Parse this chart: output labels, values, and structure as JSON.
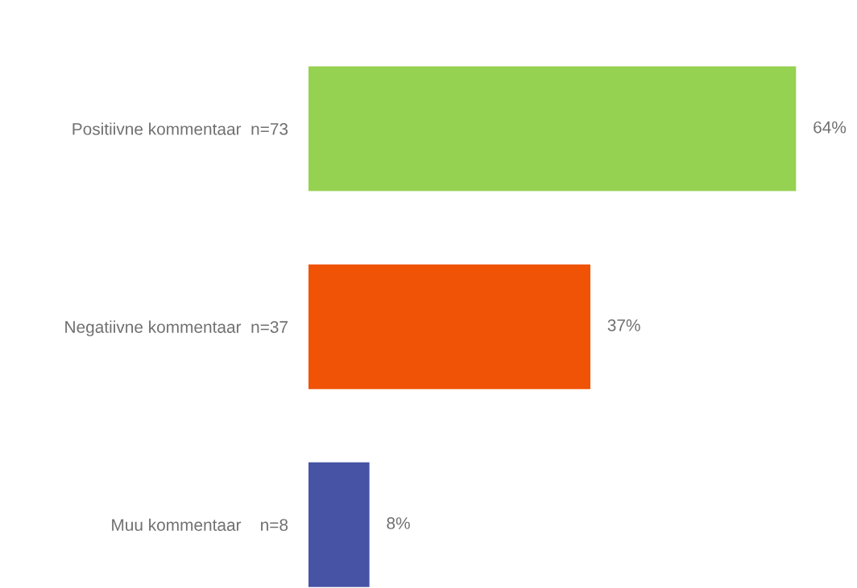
{
  "chart_data": {
    "type": "bar",
    "orientation": "horizontal",
    "categories": [
      "Positiivne kommentaar  n=73",
      "Negatiivne kommentaar  n=37",
      "Muu kommentaar    n=8"
    ],
    "values": [
      64,
      37,
      8
    ],
    "colors": [
      "#95d251",
      "#f05206",
      "#4753a5"
    ],
    "value_labels": [
      "64%",
      "37%",
      "8%"
    ],
    "grid": false,
    "legend": false,
    "tick_labels": "y"
  }
}
